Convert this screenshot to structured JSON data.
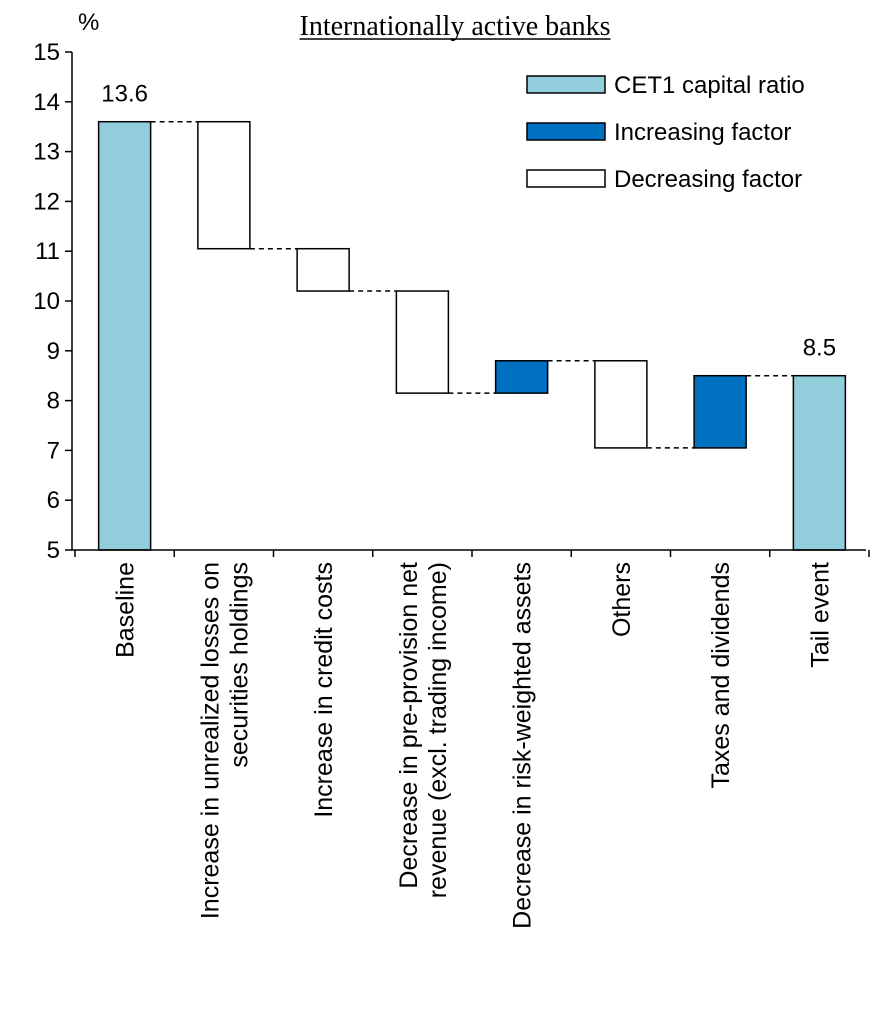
{
  "chart_data": {
    "type": "bar",
    "subtype": "waterfall",
    "title": "Internationally active banks",
    "unit_label": "%",
    "ylim": [
      5,
      15
    ],
    "yticks": [
      5,
      6,
      7,
      8,
      9,
      10,
      11,
      12,
      13,
      14,
      15
    ],
    "grid": false,
    "legend_position": "top-right",
    "legend": [
      {
        "key": "total",
        "label": "CET1 capital ratio",
        "color": "#92cddc"
      },
      {
        "key": "increase",
        "label": "Increasing factor",
        "color": "#0070c0"
      },
      {
        "key": "decrease",
        "label": "Decreasing factor",
        "color": "#ffffff"
      }
    ],
    "categories": [
      [
        "Baseline"
      ],
      [
        "Increase in unrealized losses on",
        "securities holdings"
      ],
      [
        "Increase in credit costs"
      ],
      [
        "Decrease in pre-provision net",
        "revenue (excl. trading income)"
      ],
      [
        "Decrease in risk-weighted assets"
      ],
      [
        "Others"
      ],
      [
        "Taxes and dividends"
      ],
      [
        "Tail event"
      ]
    ],
    "bars": [
      {
        "kind": "total",
        "start": 5,
        "end": 13.6,
        "label": "13.6"
      },
      {
        "kind": "decrease",
        "start": 13.6,
        "end": 11.05
      },
      {
        "kind": "decrease",
        "start": 11.05,
        "end": 10.2
      },
      {
        "kind": "decrease",
        "start": 10.2,
        "end": 8.15
      },
      {
        "kind": "increase",
        "start": 8.15,
        "end": 8.8
      },
      {
        "kind": "decrease",
        "start": 8.8,
        "end": 7.05
      },
      {
        "kind": "increase",
        "start": 7.05,
        "end": 8.5
      },
      {
        "kind": "total",
        "start": 5,
        "end": 8.5,
        "label": "8.5"
      }
    ]
  }
}
